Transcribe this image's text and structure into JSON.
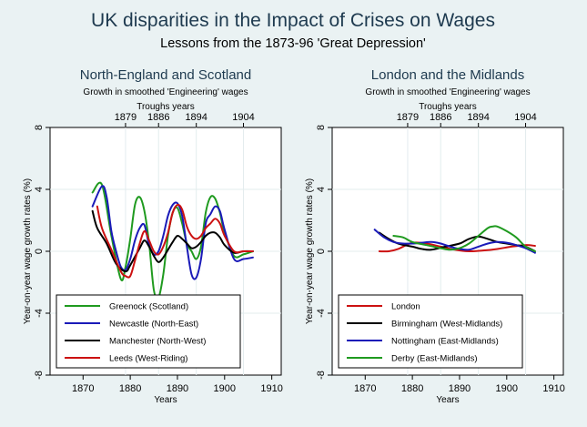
{
  "title": "UK disparities in the Impact of Crises on Wages",
  "subtitle": "Lessons from the 1873-96 'Great Depression'",
  "top_axis_title": "Troughs years",
  "chart_data": [
    {
      "type": "line",
      "title": "North-England and Scotland",
      "subtitle": "Growth in smoothed 'Engineering' wages",
      "xlabel": "Years",
      "ylabel": "Year-on-year wage growth rates (%)",
      "xlim": [
        1863,
        1912
      ],
      "ylim": [
        -8,
        8
      ],
      "xticks": [
        1870,
        1880,
        1890,
        1900,
        1910
      ],
      "yticks": [
        -8,
        -4,
        0,
        4,
        8
      ],
      "top_ticks": [
        1879,
        1886,
        1894,
        1904
      ],
      "grid": true,
      "legend_position": "bottom-left",
      "series": [
        {
          "name": "Greenock (Scotland)",
          "color": "#1f9a1f",
          "x": [
            1872,
            1874,
            1876,
            1878,
            1879,
            1880,
            1881,
            1882,
            1883,
            1884,
            1885,
            1886,
            1887,
            1888,
            1889,
            1890,
            1891,
            1892,
            1893,
            1894,
            1895,
            1896,
            1897,
            1898,
            1899,
            1900,
            1902,
            1904,
            1906
          ],
          "y": [
            3.8,
            4.3,
            1.0,
            -1.8,
            -1.0,
            0.8,
            3.0,
            3.5,
            2.6,
            0.5,
            -2.5,
            -3.0,
            -1.5,
            1.0,
            2.5,
            2.8,
            1.8,
            0.5,
            0.0,
            -0.5,
            0.3,
            2.5,
            3.5,
            3.4,
            2.5,
            1.2,
            -0.3,
            -0.2,
            0.0
          ]
        },
        {
          "name": "Newcastle (North-East)",
          "color": "#1a1ab8",
          "x": [
            1872,
            1874,
            1875,
            1876,
            1877,
            1878,
            1879,
            1880,
            1881,
            1882,
            1883,
            1884,
            1885,
            1886,
            1887,
            1888,
            1889,
            1890,
            1891,
            1892,
            1893,
            1894,
            1895,
            1896,
            1897,
            1898,
            1899,
            1900,
            1902,
            1904,
            1906
          ],
          "y": [
            2.9,
            4.2,
            3.5,
            1.3,
            0.0,
            -1.0,
            -1.2,
            -0.5,
            0.7,
            1.5,
            1.7,
            0.4,
            -0.2,
            0.0,
            1.0,
            2.3,
            3.0,
            3.1,
            2.3,
            0.3,
            -1.5,
            -1.7,
            -0.5,
            1.8,
            2.4,
            2.9,
            2.6,
            1.4,
            -0.5,
            -0.5,
            -0.4
          ]
        },
        {
          "name": "Manchester (North-West)",
          "color": "#000000",
          "x": [
            1872,
            1873,
            1875,
            1877,
            1879,
            1880,
            1882,
            1883,
            1884,
            1885,
            1886,
            1887,
            1888,
            1889,
            1890,
            1891,
            1892,
            1893,
            1894,
            1895,
            1896,
            1897,
            1898,
            1899,
            1900,
            1902,
            1904,
            1906
          ],
          "y": [
            2.6,
            1.5,
            0.5,
            -0.8,
            -1.3,
            -0.9,
            0.2,
            0.7,
            0.3,
            -0.3,
            -0.7,
            -0.4,
            0.1,
            0.6,
            1.0,
            0.8,
            0.5,
            0.2,
            0.3,
            0.6,
            1.0,
            1.2,
            1.2,
            0.9,
            0.4,
            -0.1,
            0.0,
            0.0
          ]
        },
        {
          "name": "Leeds (West-Riding)",
          "color": "#cc1111",
          "x": [
            1873,
            1874,
            1876,
            1878,
            1879,
            1880,
            1881,
            1882,
            1883,
            1884,
            1885,
            1886,
            1887,
            1888,
            1889,
            1890,
            1891,
            1892,
            1893,
            1894,
            1895,
            1896,
            1897,
            1898,
            1899,
            1900,
            1902,
            1904,
            1906
          ],
          "y": [
            2.9,
            1.5,
            0.1,
            -1.3,
            -1.6,
            -1.6,
            -0.6,
            0.5,
            1.3,
            0.7,
            0.0,
            -0.2,
            0.3,
            1.2,
            2.5,
            3.0,
            2.7,
            1.6,
            1.0,
            0.8,
            1.0,
            1.5,
            1.8,
            2.1,
            1.8,
            1.0,
            0.0,
            0.0,
            0.0
          ]
        }
      ]
    },
    {
      "type": "line",
      "title": "London and the Midlands",
      "subtitle": "Growth in smoothed 'Engineering' wages",
      "xlabel": "Years",
      "ylabel": "Year-on-year wage growth rates (%)",
      "xlim": [
        1863,
        1912
      ],
      "ylim": [
        -8,
        8
      ],
      "xticks": [
        1870,
        1880,
        1890,
        1900,
        1910
      ],
      "yticks": [
        -8,
        -4,
        0,
        4,
        8
      ],
      "top_ticks": [
        1879,
        1886,
        1894,
        1904
      ],
      "grid": true,
      "legend_position": "bottom-left",
      "series": [
        {
          "name": "London",
          "color": "#cc1111",
          "x": [
            1873,
            1875,
            1877,
            1880,
            1883,
            1886,
            1889,
            1892,
            1895,
            1898,
            1901,
            1904,
            1906
          ],
          "y": [
            0.0,
            0.0,
            0.15,
            0.55,
            0.5,
            0.3,
            0.1,
            0.0,
            0.05,
            0.15,
            0.3,
            0.4,
            0.35
          ]
        },
        {
          "name": "Birmingham (West-Midlands)",
          "color": "#000000",
          "x": [
            1873,
            1875,
            1877,
            1880,
            1882,
            1884,
            1887,
            1890,
            1892,
            1894,
            1896,
            1898,
            1900,
            1902,
            1904,
            1906
          ],
          "y": [
            1.2,
            0.8,
            0.5,
            0.3,
            0.15,
            0.1,
            0.3,
            0.5,
            0.8,
            0.95,
            0.8,
            0.6,
            0.5,
            0.4,
            0.3,
            0.0
          ]
        },
        {
          "name": "Nottingham (East-Midlands)",
          "color": "#1a1ab8",
          "x": [
            1872,
            1874,
            1876,
            1878,
            1880,
            1882,
            1884,
            1886,
            1888,
            1890,
            1892,
            1894,
            1896,
            1898,
            1900,
            1902,
            1904,
            1906
          ],
          "y": [
            1.4,
            0.9,
            0.6,
            0.5,
            0.5,
            0.55,
            0.6,
            0.5,
            0.3,
            0.15,
            0.1,
            0.3,
            0.5,
            0.6,
            0.55,
            0.4,
            0.2,
            -0.1
          ]
        },
        {
          "name": "Derby (East-Midlands)",
          "color": "#1f9a1f",
          "x": [
            1876,
            1878,
            1880,
            1883,
            1886,
            1888,
            1890,
            1892,
            1894,
            1896,
            1897,
            1898,
            1900,
            1902,
            1904,
            1906
          ],
          "y": [
            1.0,
            0.9,
            0.6,
            0.4,
            0.2,
            0.1,
            0.2,
            0.5,
            1.0,
            1.5,
            1.6,
            1.6,
            1.3,
            0.9,
            0.3,
            0.0
          ]
        }
      ]
    }
  ]
}
